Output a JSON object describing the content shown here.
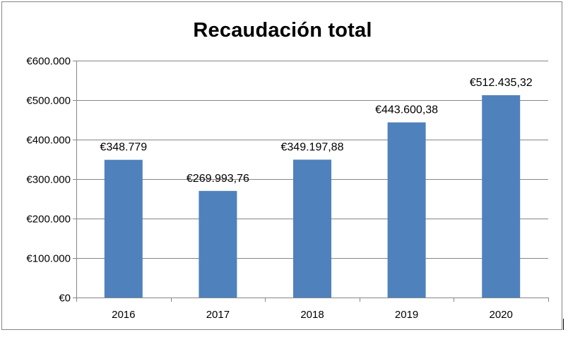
{
  "chart_data": {
    "type": "bar",
    "title": "Recaudación total",
    "categories": [
      "2016",
      "2017",
      "2018",
      "2019",
      "2020"
    ],
    "values": [
      348779,
      269993.76,
      349197.88,
      443600.38,
      512435.32
    ],
    "data_labels": [
      "€348.779",
      "€269.993,76",
      "€349.197,88",
      "€443.600,38",
      "€512.435,32"
    ],
    "y_ticks": [
      0,
      100000,
      200000,
      300000,
      400000,
      500000,
      600000
    ],
    "y_tick_labels": [
      "€0",
      "€100.000",
      "€200.000",
      "€300.000",
      "€400.000",
      "€500.000",
      "€600.000"
    ],
    "ylim": [
      0,
      600000
    ],
    "grid": true,
    "legend": "none",
    "bar_color": "#4f81bd",
    "xlabel": "",
    "ylabel": ""
  }
}
